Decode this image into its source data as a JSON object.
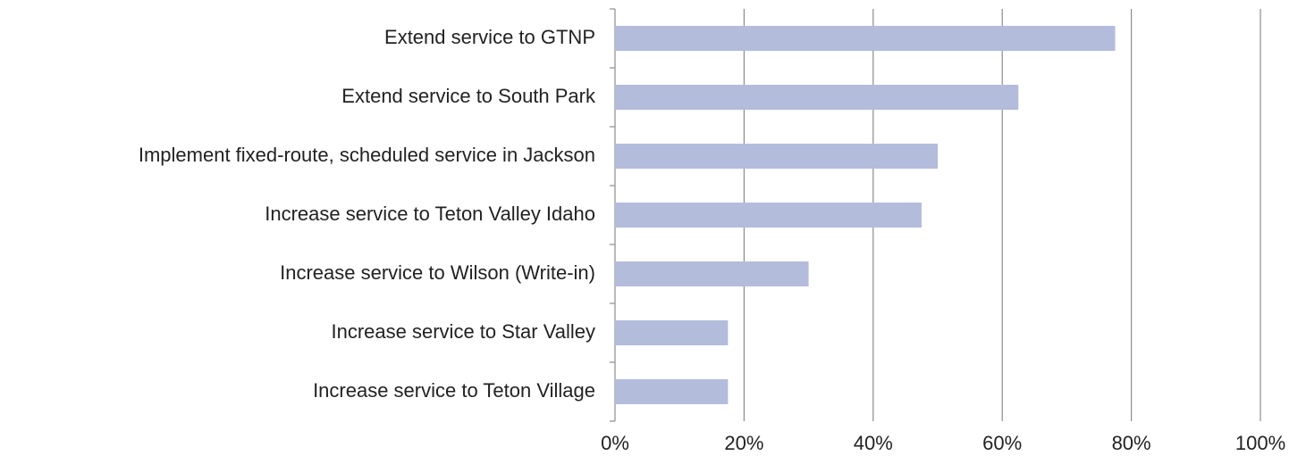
{
  "chart_data": {
    "type": "bar",
    "orientation": "horizontal",
    "categories": [
      "Extend service to GTNP",
      "Extend service to South Park",
      "Implement fixed-route, scheduled service in Jackson",
      "Increase service to Teton Valley Idaho",
      "Increase service to Wilson (Write-in)",
      "Increase service to Star Valley",
      "Increase service to Teton Village"
    ],
    "values": [
      77.5,
      62.5,
      50,
      47.5,
      30,
      17.5,
      17.5
    ],
    "color": "#b4bcdc",
    "xlim": [
      0,
      100
    ],
    "xticks": [
      {
        "value": 0,
        "label": "0%"
      },
      {
        "value": 20,
        "label": "20%"
      },
      {
        "value": 40,
        "label": "40%"
      },
      {
        "value": 60,
        "label": "60%"
      },
      {
        "value": 80,
        "label": "80%"
      },
      {
        "value": 100,
        "label": "100%"
      }
    ],
    "grid": true
  }
}
